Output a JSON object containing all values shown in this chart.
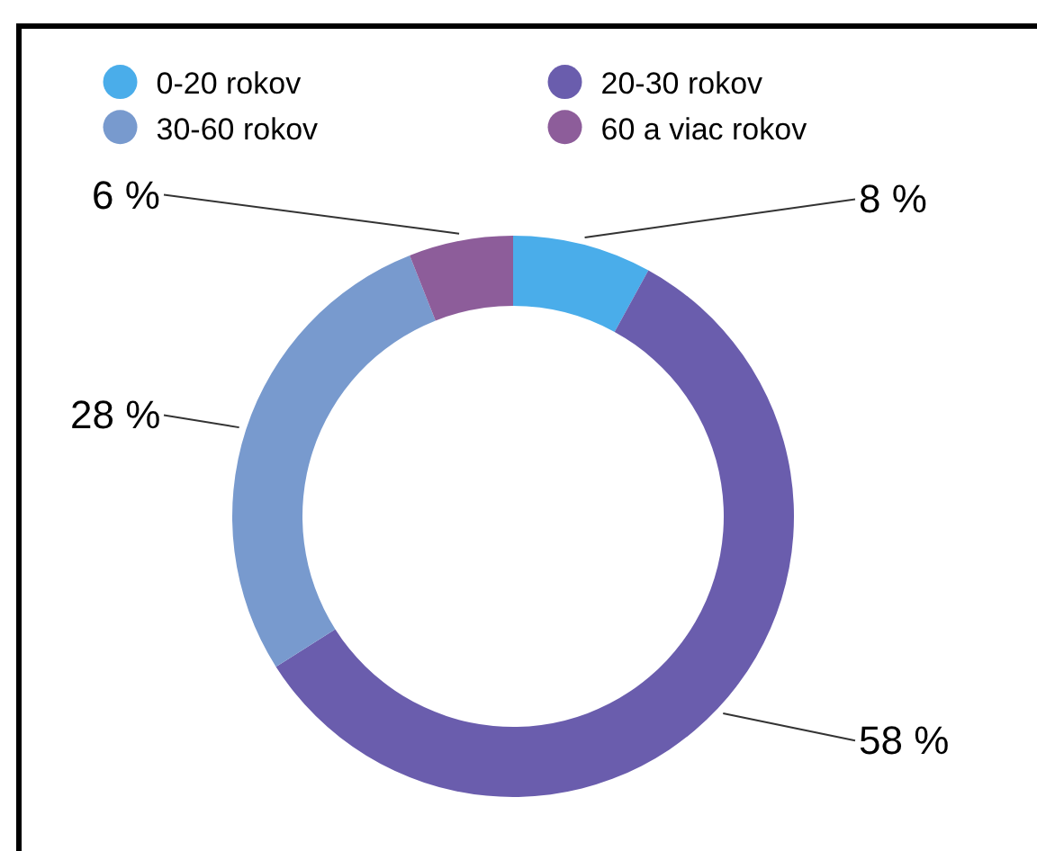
{
  "chart_data": {
    "type": "donut",
    "categories": [
      "0-20 rokov",
      "20-30 rokov",
      "30-60 rokov",
      "60 a viac rokov"
    ],
    "values": [
      8,
      58,
      28,
      6
    ],
    "colors": [
      "#4aadea",
      "#6a5dad",
      "#789ace",
      "#8d5d9a"
    ],
    "value_labels": [
      "8 %",
      "58 %",
      "28 %",
      "6 %"
    ],
    "legend": "top"
  }
}
